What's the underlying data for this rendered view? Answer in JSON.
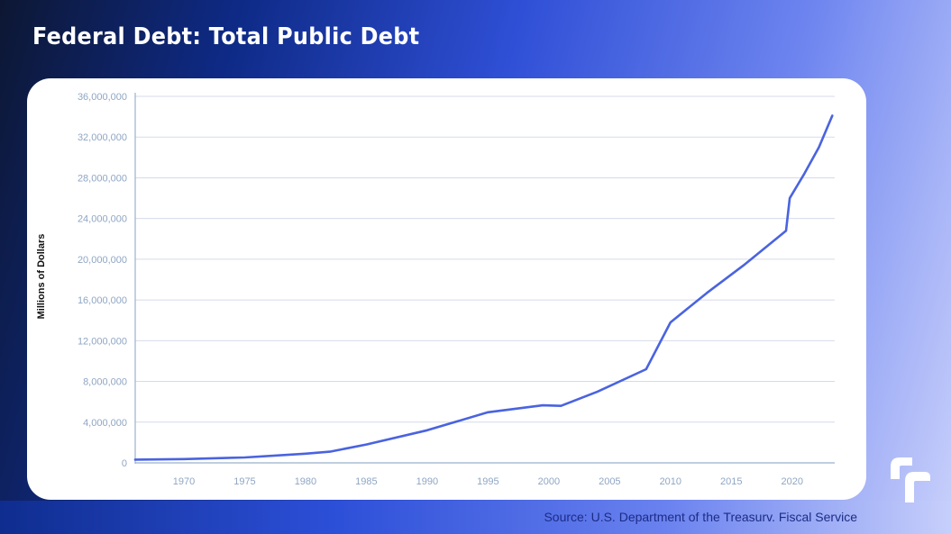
{
  "title": "Federal Debt: Total Public Debt",
  "source": "Source: U.S. Department of the Treasurv. Fiscal Service",
  "logo_icon": "brand-logo-icon",
  "colors": {
    "line": "#4a63e0",
    "grid": "#d6dbe8",
    "axis": "#9bb0cc",
    "ticks": "#8fa6c4"
  },
  "chart_data": {
    "type": "line",
    "title": "Federal Debt: Total Public Debt",
    "xlabel": "",
    "ylabel": "Millions of Dollars",
    "xlim": [
      1966,
      2023.5
    ],
    "ylim": [
      0,
      36000000
    ],
    "x_ticks": [
      1970,
      1975,
      1980,
      1985,
      1990,
      1995,
      2000,
      2005,
      2010,
      2015,
      2020
    ],
    "y_ticks": [
      0,
      4000000,
      8000000,
      12000000,
      16000000,
      20000000,
      24000000,
      28000000,
      32000000,
      36000000
    ],
    "y_tick_labels": [
      "0",
      "4,000,000",
      "8,000,000",
      "12,000,000",
      "16,000,000",
      "20,000,000",
      "24,000,000",
      "28,000,000",
      "32,000,000",
      "36,000,000"
    ],
    "grid": true,
    "series": [
      {
        "x": [
          1966,
          1970,
          1975,
          1980,
          1982,
          1985,
          1990,
          1995,
          1999.5,
          2001,
          2004,
          2008,
          2010,
          2013,
          2016,
          2019.5,
          2019.8,
          2021,
          2022.2,
          2023.3
        ],
        "y": [
          320000,
          370000,
          530000,
          900000,
          1100000,
          1800000,
          3200000,
          4970000,
          5650000,
          5600000,
          7000000,
          9200000,
          13800000,
          16700000,
          19400000,
          22800000,
          26000000,
          28400000,
          31000000,
          34100000
        ]
      }
    ]
  }
}
